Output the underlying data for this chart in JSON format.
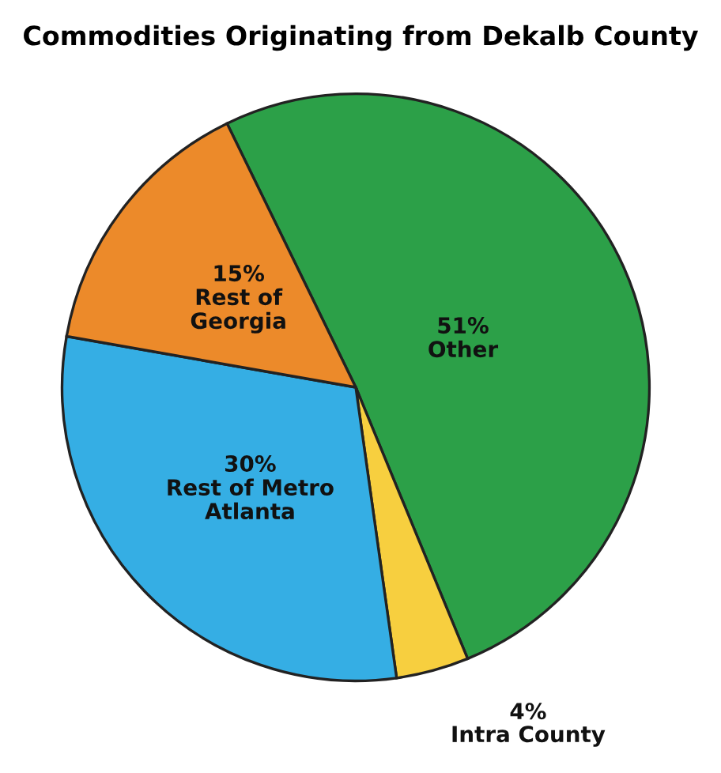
{
  "chart_data": {
    "type": "pie",
    "title": "Commodities Originating from Dekalb County",
    "categories": [
      "Other",
      "Intra County",
      "Rest of Metro Atlanta",
      "Rest of Georgia"
    ],
    "values": [
      51,
      4,
      30,
      15
    ],
    "value_labels": [
      "51%",
      "4%",
      "30%",
      "15%"
    ],
    "colors": [
      "#2ca048",
      "#f7cf3f",
      "#35aee4",
      "#ec8a2a"
    ]
  }
}
